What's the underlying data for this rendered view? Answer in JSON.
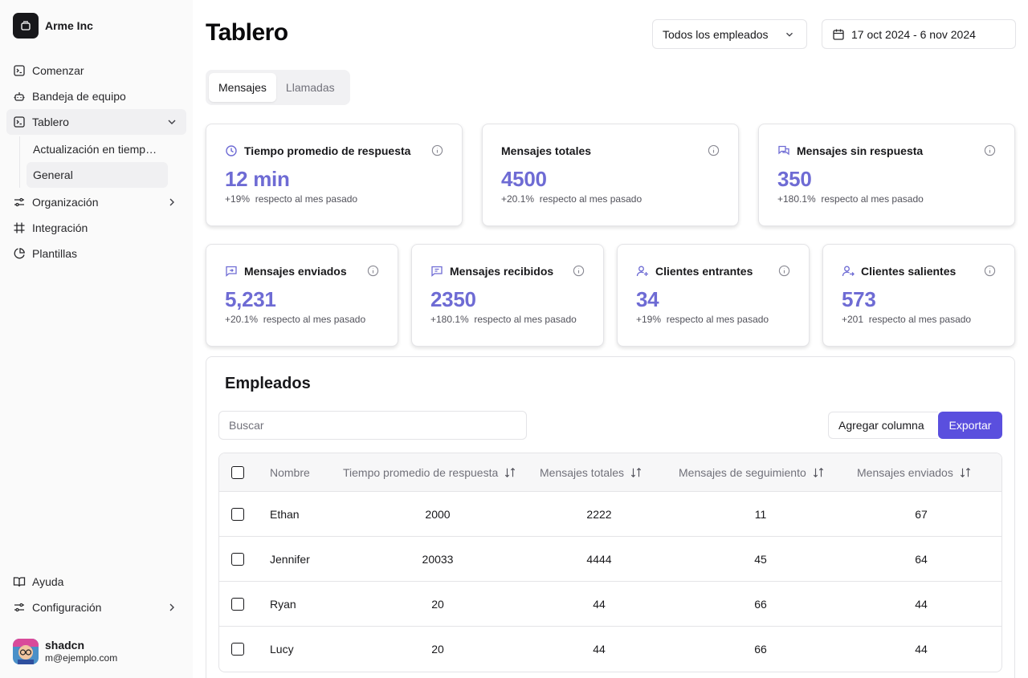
{
  "brand": {
    "name": "Arme Inc"
  },
  "sidebar": {
    "items": [
      {
        "label": "Comenzar",
        "icon": "square-terminal-icon"
      },
      {
        "label": "Bandeja de equipo",
        "icon": "bot-icon"
      },
      {
        "label": "Tablero",
        "icon": "square-terminal-icon",
        "expanded": true
      },
      {
        "label": "Organización",
        "icon": "settings-sliders-icon"
      },
      {
        "label": "Integración",
        "icon": "frame-icon"
      },
      {
        "label": "Plantillas",
        "icon": "pie-chart-icon"
      }
    ],
    "subitems": [
      {
        "label": "Actualización en tiempo real"
      },
      {
        "label": "General",
        "active": true
      }
    ],
    "footer": [
      {
        "label": "Ayuda",
        "icon": "book-open-icon"
      },
      {
        "label": "Configuración",
        "icon": "settings-sliders-icon"
      }
    ]
  },
  "user": {
    "name": "shadcn",
    "email": "m@ejemplo.com"
  },
  "header": {
    "title": "Tablero",
    "employee_filter": "Todos los empleados",
    "date_range": "17 oct 2024 - 6 nov 2024"
  },
  "tabs": [
    {
      "label": "Mensajes",
      "active": true
    },
    {
      "label": "Llamadas",
      "active": false
    }
  ],
  "stats_top": [
    {
      "title": "Tiempo promedio de respuesta",
      "value": "12 min",
      "change": "+19%",
      "suffix": "respecto al mes pasado",
      "icon": "clock-icon"
    },
    {
      "title": "Mensajes totales",
      "value": "4500",
      "change": "+20.1%",
      "suffix": "respecto al mes pasado",
      "icon": ""
    },
    {
      "title": "Mensajes sin respuesta",
      "value": "350",
      "change": "+180.1%",
      "suffix": "respecto al mes pasado",
      "icon": "messages-icon"
    }
  ],
  "stats_bottom": [
    {
      "title": "Mensajes enviados",
      "value": "5,231",
      "change": "+20.1%",
      "suffix": "respecto al mes pasado",
      "icon": "message-out-icon"
    },
    {
      "title": "Mensajes recibidos",
      "value": "2350",
      "change": "+180.1%",
      "suffix": "respecto al mes pasado",
      "icon": "message-in-icon"
    },
    {
      "title": "Clientes entrantes",
      "value": "34",
      "change": "+19%",
      "suffix": "respecto al mes pasado",
      "icon": "user-plus-icon"
    },
    {
      "title": "Clientes salientes",
      "value": "573",
      "change": "+201",
      "suffix": "respecto al mes pasado",
      "icon": "user-out-icon"
    }
  ],
  "employees": {
    "title": "Empleados",
    "search_placeholder": "Buscar",
    "add_column_label": "Agregar columna",
    "export_label": "Exportar",
    "columns": [
      "Nombre",
      "Tiempo promedio de respuesta",
      "Mensajes totales",
      "Mensajes de seguimiento",
      "Mensajes enviados"
    ],
    "rows": [
      {
        "name": "Ethan",
        "avg": "2000",
        "total": "2222",
        "followup": "11",
        "sent": "67"
      },
      {
        "name": "Jennifer",
        "avg": "20033",
        "total": "4444",
        "followup": "45",
        "sent": "64"
      },
      {
        "name": "Ryan",
        "avg": "20",
        "total": "44",
        "followup": "66",
        "sent": "44"
      },
      {
        "name": "Lucy",
        "avg": "20",
        "total": "44",
        "followup": "66",
        "sent": "44"
      }
    ]
  },
  "colors": {
    "accent": "#5a4fde",
    "stat_value": "#6e6bd4"
  }
}
